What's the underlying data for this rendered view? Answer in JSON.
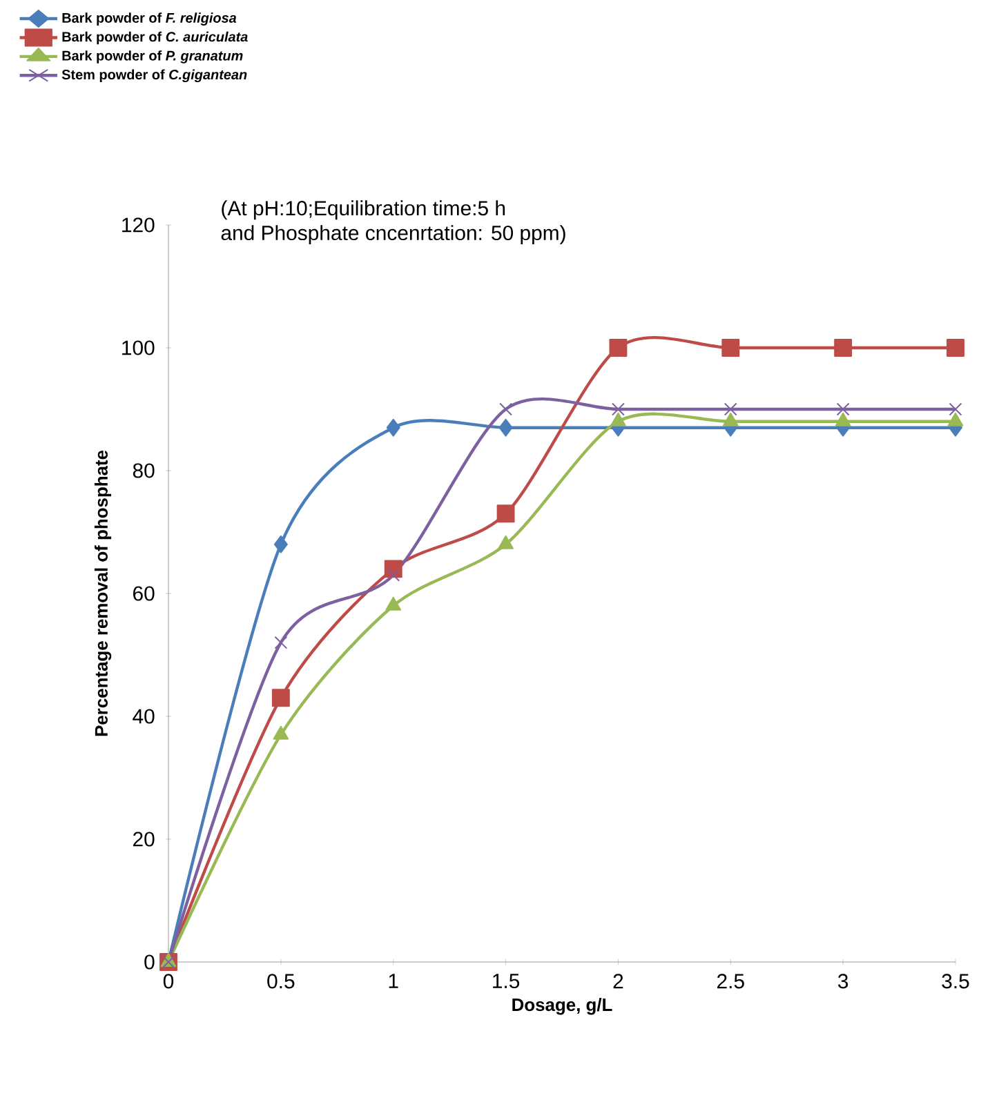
{
  "chart_data": {
    "type": "line",
    "title": "(At pH:10;Equilibration time:5 h",
    "subtitle": "and Phosphate cncenrtation: 50 ppm)",
    "xlabel": "Dosage, g/L",
    "ylabel": "Percentage removal of phosphate",
    "x": [
      0,
      0.5,
      1,
      1.5,
      2,
      2.5,
      3,
      3.5
    ],
    "series": [
      {
        "name": "Bark powder of *F. religiosa*",
        "color": "#4a7ebb",
        "marker": "diamond",
        "values": [
          0,
          68,
          87,
          87,
          87,
          87,
          87,
          87
        ]
      },
      {
        "name": "Bark powder of *C. auriculata*",
        "color": "#be4b48",
        "marker": "square",
        "values": [
          0,
          43,
          64,
          73,
          100,
          100,
          100,
          100
        ]
      },
      {
        "name": "Bark powder of *P. granatum*",
        "color": "#98b954",
        "marker": "triangle",
        "values": [
          0,
          37,
          58,
          68,
          88,
          88,
          88,
          88
        ]
      },
      {
        "name": "Stem powder of *C.gigantean*",
        "color": "#7d60a0",
        "marker": "cross",
        "values": [
          0,
          52,
          63,
          90,
          90,
          90,
          90,
          90
        ]
      }
    ],
    "xlim": [
      0,
      3.5
    ],
    "xticks": [
      0,
      0.5,
      1,
      1.5,
      2,
      2.5,
      3,
      3.5
    ],
    "ylim": [
      0,
      120
    ],
    "yticks": [
      0,
      20,
      40,
      60,
      80,
      100,
      120
    ],
    "grid": false,
    "legend": "top left",
    "line_style": "solid"
  }
}
